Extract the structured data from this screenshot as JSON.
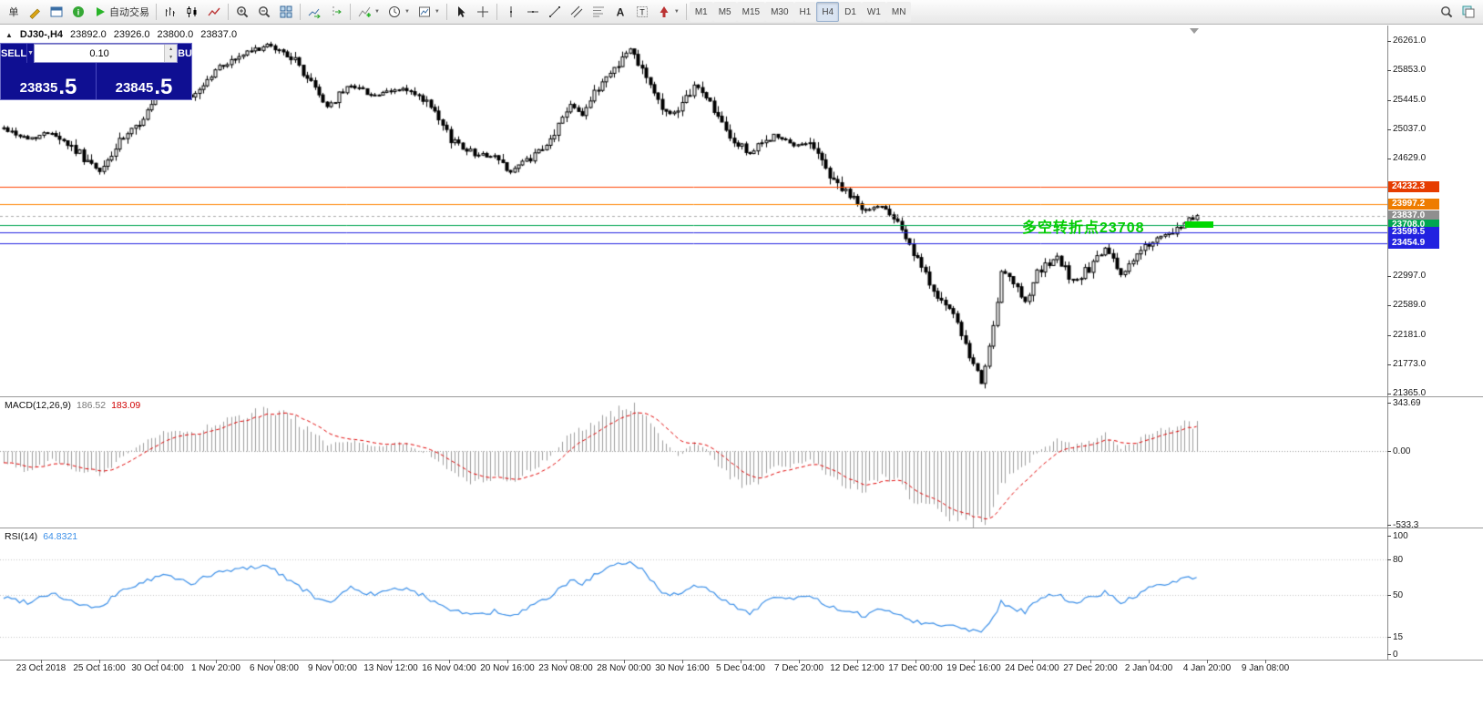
{
  "ui": {
    "caret_down": "▼",
    "caret_up": "▲"
  },
  "toolbar": {
    "items": [
      {
        "name": "new-order-button",
        "label": "单"
      },
      {
        "name": "metaeditor-icon",
        "icon": "pencil"
      },
      {
        "name": "chart-window-icon",
        "icon": "win"
      },
      {
        "name": "help-icon",
        "icon": "info"
      },
      {
        "name": "autotrading-button",
        "icon": "play",
        "label": "自动交易"
      },
      {
        "sep": true
      },
      {
        "name": "bar-chart-icon",
        "icon": "bars"
      },
      {
        "name": "candlestick-chart-icon",
        "icon": "candles"
      },
      {
        "name": "line-chart-icon",
        "icon": "linechart"
      },
      {
        "sep": true
      },
      {
        "name": "zoom-in-icon",
        "icon": "zoomin"
      },
      {
        "name": "zoom-out-icon",
        "icon": "zoomout"
      },
      {
        "name": "tile-windows-icon",
        "icon": "tile"
      },
      {
        "sep": true
      },
      {
        "name": "autoscroll-icon",
        "icon": "autoscroll"
      },
      {
        "name": "chart-shift-icon",
        "icon": "shift"
      },
      {
        "sep": true
      },
      {
        "name": "indicators-button",
        "icon": "indicators",
        "caret": true
      },
      {
        "name": "periods-button",
        "icon": "clock",
        "caret": true
      },
      {
        "name": "templates-button",
        "icon": "template",
        "caret": true
      },
      {
        "sep": true
      },
      {
        "name": "cursor-icon",
        "icon": "cursor"
      },
      {
        "name": "crosshair-icon",
        "icon": "crosshair"
      },
      {
        "sep": true
      },
      {
        "name": "vertical-line-icon",
        "icon": "vline"
      },
      {
        "name": "horizontal-line-icon",
        "icon": "hline"
      },
      {
        "name": "trendline-icon",
        "icon": "trend"
      },
      {
        "name": "equidistant-channel-icon",
        "icon": "channel"
      },
      {
        "name": "fibonacci-icon",
        "icon": "fibo"
      },
      {
        "name": "text-icon",
        "icon": "textA"
      },
      {
        "name": "label-icon",
        "icon": "textT"
      },
      {
        "name": "arrows-icon",
        "icon": "arrow",
        "caret": true
      },
      {
        "sep": true
      }
    ],
    "timeframes": [
      {
        "label": "M1"
      },
      {
        "label": "M5"
      },
      {
        "label": "M15"
      },
      {
        "label": "M30"
      },
      {
        "label": "H1"
      },
      {
        "label": "H4",
        "active": true
      },
      {
        "label": "D1"
      },
      {
        "label": "W1"
      },
      {
        "label": "MN"
      }
    ],
    "right_items": [
      {
        "name": "search-icon",
        "icon": "search"
      },
      {
        "name": "layers-icon",
        "icon": "layers"
      }
    ]
  },
  "chart": {
    "marker": "▲",
    "symbol_title": "DJ30-,H4",
    "ohlc": {
      "open": "23892.0",
      "high": "23926.0",
      "low": "23800.0",
      "close": "23837.0"
    },
    "one_click": {
      "sell_label": "SELL",
      "buy_label": "BUY",
      "volume": "0.10",
      "sell_price_main": "23835",
      "sell_price_frac": ".5",
      "buy_price_main": "23845",
      "buy_price_frac": ".5"
    },
    "annotation": {
      "text": "多空转折点23708",
      "color": "#00cc00",
      "dash_color": "#00d800"
    },
    "price_axis": {
      "labels": [
        {
          "label": "26261.0",
          "value": 26261.0
        },
        {
          "label": "25853.0",
          "value": 25853.0
        },
        {
          "label": "25445.0",
          "value": 25445.0
        },
        {
          "label": "25037.0",
          "value": 25037.0
        },
        {
          "label": "24629.0",
          "value": 24629.0
        },
        {
          "label": "22997.0",
          "value": 22997.0
        },
        {
          "label": "22589.0",
          "value": 22589.0
        },
        {
          "label": "22181.0",
          "value": 22181.0
        },
        {
          "label": "21773.0",
          "value": 21773.0
        },
        {
          "label": "21365.0",
          "value": 21365.0
        }
      ]
    },
    "levels": [
      {
        "label": "24232.3",
        "value": 24232.3,
        "color": "#ff4500",
        "badge": "#e63c00",
        "style": "solid"
      },
      {
        "label": "23997.2",
        "value": 23997.2,
        "color": "#ff8400",
        "badge": "#ee7c00",
        "style": "solid"
      },
      {
        "label": "23837.0",
        "value": 23837.0,
        "color": "#aaaaaa",
        "badge": "#8f8f8f",
        "style": "dashed"
      },
      {
        "label": "23708.0",
        "value": 23708.0,
        "color": "#00a651",
        "badge": "#00a651",
        "style": "solid"
      },
      {
        "label": "23599.5",
        "value": 23599.5,
        "color": "#2222e0",
        "badge": "#2222e0",
        "style": "solid"
      },
      {
        "label": "23454.9",
        "value": 23454.9,
        "color": "#2222e0",
        "badge": "#2222e0",
        "style": "solid"
      }
    ],
    "colors": {
      "bull": "#ffffff",
      "bear": "#000000",
      "outline": "#000000",
      "macd_hist": "#9c9c9c",
      "macd_signal": "#e00000",
      "rsi_line": "#3b8fe8"
    }
  },
  "macd_panel": {
    "title": "MACD(12,26,9)",
    "value_main": "186.52",
    "value_signal": "183.09",
    "axis": [
      {
        "label": "343.69",
        "value": 343.69
      },
      {
        "label": "0.00",
        "value": 0
      },
      {
        "label": "-533.3",
        "value": -533.3
      }
    ]
  },
  "rsi_panel": {
    "title": "RSI(14)",
    "value": "64.8321",
    "axis": [
      {
        "label": "100",
        "value": 100
      },
      {
        "label": "80",
        "value": 80
      },
      {
        "label": "50",
        "value": 50
      },
      {
        "label": "15",
        "value": 15
      },
      {
        "label": "0",
        "value": 0
      }
    ],
    "level_lines": [
      80,
      50,
      15
    ]
  },
  "time_axis": {
    "start_cx": 45,
    "spacing": 64,
    "labels": [
      "23 Oct 2018",
      "25 Oct 16:00",
      "30 Oct 04:00",
      "1 Nov 20:00",
      "6 Nov 08:00",
      "9 Nov 00:00",
      "13 Nov 12:00",
      "16 Nov 04:00",
      "20 Nov 16:00",
      "23 Nov 08:00",
      "28 Nov 00:00",
      "30 Nov 16:00",
      "5 Dec 04:00",
      "7 Dec 20:00",
      "12 Dec 12:00",
      "17 Dec 00:00",
      "19 Dec 16:00",
      "24 Dec 04:00",
      "27 Dec 20:00",
      "2 Jan 04:00",
      "4 Jan 20:00",
      "9 Jan 08:00"
    ]
  },
  "chart_data": [
    {
      "type": "candlestick",
      "title": "DJ30-,H4",
      "ylabel": "price",
      "ylim": [
        21365,
        26476
      ],
      "bars": 300,
      "last_close": 23837,
      "price_anchors": [
        [
          0,
          25050
        ],
        [
          6,
          24900
        ],
        [
          12,
          25000
        ],
        [
          18,
          24750
        ],
        [
          24,
          24430
        ],
        [
          29,
          24850
        ],
        [
          33,
          25050
        ],
        [
          40,
          25600
        ],
        [
          47,
          25480
        ],
        [
          54,
          25900
        ],
        [
          61,
          26100
        ],
        [
          66,
          26200
        ],
        [
          72,
          26050
        ],
        [
          78,
          25600
        ],
        [
          81,
          25350
        ],
        [
          87,
          25650
        ],
        [
          93,
          25500
        ],
        [
          100,
          25600
        ],
        [
          106,
          25400
        ],
        [
          112,
          24900
        ],
        [
          118,
          24700
        ],
        [
          123,
          24650
        ],
        [
          127,
          24450
        ],
        [
          131,
          24600
        ],
        [
          136,
          24780
        ],
        [
          142,
          25400
        ],
        [
          145,
          25250
        ],
        [
          150,
          25700
        ],
        [
          157,
          26150
        ],
        [
          160,
          25900
        ],
        [
          165,
          25300
        ],
        [
          169,
          25250
        ],
        [
          173,
          25650
        ],
        [
          176,
          25500
        ],
        [
          182,
          24900
        ],
        [
          187,
          24700
        ],
        [
          193,
          24950
        ],
        [
          198,
          24800
        ],
        [
          202,
          24870
        ],
        [
          207,
          24400
        ],
        [
          211,
          24150
        ],
        [
          216,
          23900
        ],
        [
          220,
          23980
        ],
        [
          224,
          23800
        ],
        [
          227,
          23400
        ],
        [
          231,
          23000
        ],
        [
          235,
          22650
        ],
        [
          239,
          22350
        ],
        [
          242,
          21850
        ],
        [
          245,
          21560
        ],
        [
          248,
          22250
        ],
        [
          250,
          23050
        ],
        [
          253,
          22880
        ],
        [
          256,
          22650
        ],
        [
          259,
          23050
        ],
        [
          264,
          23250
        ],
        [
          268,
          22920
        ],
        [
          273,
          23150
        ],
        [
          276,
          23380
        ],
        [
          280,
          23020
        ],
        [
          283,
          23220
        ],
        [
          287,
          23450
        ],
        [
          290,
          23520
        ],
        [
          294,
          23620
        ],
        [
          296,
          23760
        ],
        [
          299,
          23837
        ]
      ]
    },
    {
      "type": "bar",
      "name": "MACD(12,26,9)",
      "ylim": [
        -533.3,
        343.69
      ],
      "anchors": [
        [
          0,
          -80
        ],
        [
          6,
          -150
        ],
        [
          12,
          -60
        ],
        [
          18,
          -140
        ],
        [
          24,
          -190
        ],
        [
          29,
          -60
        ],
        [
          33,
          20
        ],
        [
          40,
          150
        ],
        [
          47,
          120
        ],
        [
          54,
          210
        ],
        [
          61,
          260
        ],
        [
          66,
          300
        ],
        [
          72,
          240
        ],
        [
          78,
          110
        ],
        [
          81,
          40
        ],
        [
          87,
          70
        ],
        [
          93,
          30
        ],
        [
          100,
          60
        ],
        [
          106,
          -20
        ],
        [
          112,
          -160
        ],
        [
          118,
          -230
        ],
        [
          123,
          -200
        ],
        [
          127,
          -240
        ],
        [
          131,
          -160
        ],
        [
          136,
          -70
        ],
        [
          142,
          130
        ],
        [
          145,
          150
        ],
        [
          150,
          230
        ],
        [
          157,
          320
        ],
        [
          160,
          280
        ],
        [
          165,
          70
        ],
        [
          169,
          -40
        ],
        [
          173,
          50
        ],
        [
          176,
          0
        ],
        [
          182,
          -190
        ],
        [
          187,
          -270
        ],
        [
          193,
          -120
        ],
        [
          198,
          -110
        ],
        [
          202,
          -70
        ],
        [
          207,
          -190
        ],
        [
          211,
          -250
        ],
        [
          216,
          -270
        ],
        [
          220,
          -200
        ],
        [
          224,
          -230
        ],
        [
          227,
          -310
        ],
        [
          231,
          -390
        ],
        [
          235,
          -430
        ],
        [
          239,
          -470
        ],
        [
          242,
          -520
        ],
        [
          245,
          -533
        ],
        [
          248,
          -400
        ],
        [
          250,
          -240
        ],
        [
          253,
          -150
        ],
        [
          256,
          -100
        ],
        [
          259,
          -10
        ],
        [
          264,
          90
        ],
        [
          268,
          40
        ],
        [
          273,
          70
        ],
        [
          276,
          110
        ],
        [
          280,
          20
        ],
        [
          283,
          50
        ],
        [
          287,
          110
        ],
        [
          290,
          150
        ],
        [
          294,
          190
        ],
        [
          296,
          190
        ],
        [
          299,
          186
        ]
      ]
    },
    {
      "type": "line",
      "name": "RSI(14)",
      "ylim": [
        0,
        100
      ],
      "levels": [
        80,
        50,
        15
      ],
      "anchors": [
        [
          0,
          48
        ],
        [
          6,
          44
        ],
        [
          12,
          52
        ],
        [
          18,
          43
        ],
        [
          24,
          38
        ],
        [
          29,
          53
        ],
        [
          33,
          58
        ],
        [
          40,
          67
        ],
        [
          47,
          60
        ],
        [
          54,
          69
        ],
        [
          61,
          73
        ],
        [
          66,
          75
        ],
        [
          72,
          62
        ],
        [
          78,
          48
        ],
        [
          81,
          43
        ],
        [
          87,
          56
        ],
        [
          93,
          50
        ],
        [
          100,
          56
        ],
        [
          106,
          48
        ],
        [
          112,
          38
        ],
        [
          118,
          33
        ],
        [
          123,
          36
        ],
        [
          127,
          31
        ],
        [
          131,
          38
        ],
        [
          136,
          46
        ],
        [
          142,
          62
        ],
        [
          145,
          60
        ],
        [
          150,
          70
        ],
        [
          157,
          79
        ],
        [
          160,
          72
        ],
        [
          165,
          52
        ],
        [
          169,
          50
        ],
        [
          173,
          60
        ],
        [
          176,
          55
        ],
        [
          182,
          42
        ],
        [
          187,
          35
        ],
        [
          193,
          49
        ],
        [
          198,
          46
        ],
        [
          202,
          49
        ],
        [
          207,
          40
        ],
        [
          211,
          35
        ],
        [
          216,
          33
        ],
        [
          220,
          38
        ],
        [
          224,
          35
        ],
        [
          227,
          29
        ],
        [
          231,
          26
        ],
        [
          235,
          25
        ],
        [
          239,
          23
        ],
        [
          242,
          21
        ],
        [
          245,
          20
        ],
        [
          248,
          31
        ],
        [
          250,
          44
        ],
        [
          253,
          39
        ],
        [
          256,
          36
        ],
        [
          259,
          45
        ],
        [
          264,
          51
        ],
        [
          268,
          43
        ],
        [
          273,
          48
        ],
        [
          276,
          53
        ],
        [
          280,
          43
        ],
        [
          283,
          48
        ],
        [
          287,
          55
        ],
        [
          290,
          58
        ],
        [
          294,
          61
        ],
        [
          296,
          64
        ],
        [
          299,
          64.83
        ]
      ]
    }
  ]
}
